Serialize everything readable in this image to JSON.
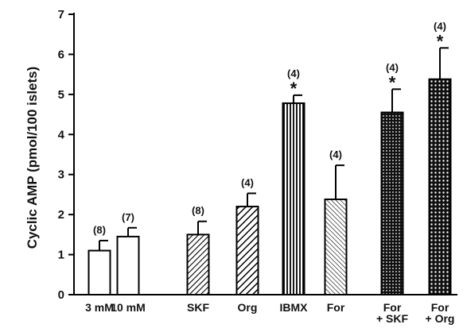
{
  "chart_data": {
    "type": "bar",
    "ylabel": "Cyclic AMP (pmol/100 islets)",
    "ylim": [
      0,
      7
    ],
    "yticks": [
      "0",
      "1",
      "2",
      "3",
      "4",
      "5",
      "6",
      "7"
    ],
    "grid": false,
    "categories": [
      [
        "3 mM"
      ],
      [
        "10 mM"
      ],
      [
        "SKF"
      ],
      [
        "Org"
      ],
      [
        "IBMX"
      ],
      [
        "For"
      ],
      [
        "For",
        "+ SKF"
      ],
      [
        "For",
        "+ Org"
      ]
    ],
    "values": [
      1.1,
      1.45,
      1.5,
      2.2,
      4.78,
      2.38,
      4.55,
      5.38
    ],
    "errors": [
      0.25,
      0.22,
      0.33,
      0.33,
      0.2,
      0.85,
      0.58,
      0.78
    ],
    "n_labels": [
      "(8)",
      "(7)",
      "(8)",
      "(4)",
      "(4)",
      "(4)",
      "(4)",
      "(4)"
    ],
    "significant": [
      false,
      false,
      false,
      false,
      true,
      false,
      true,
      true
    ],
    "significance_marker": "*",
    "fills": [
      "blank",
      "blank",
      "diag-dense",
      "diag-bold",
      "vertical",
      "diag-thin",
      "dots-dense",
      "dots-sparse"
    ]
  }
}
